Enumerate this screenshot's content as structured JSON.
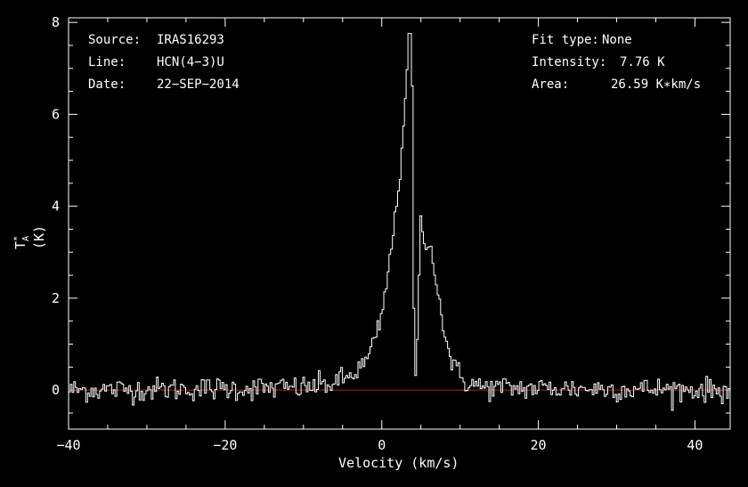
{
  "chart_data": {
    "type": "line",
    "title": "",
    "xlabel": "Velocity (km/s)",
    "ylabel_main": "T",
    "ylabel_sup": "*",
    "ylabel_sub": "A",
    "ylabel_unit": "(K)",
    "xlim": [
      -40,
      44.5
    ],
    "ylim": [
      -0.85,
      8.1
    ],
    "x_ticks": [
      -40,
      -20,
      0,
      20,
      40
    ],
    "x_tick_labels": [
      "−40",
      "−20",
      "0",
      "20",
      "40"
    ],
    "y_ticks": [
      0,
      2,
      4,
      6,
      8
    ],
    "y_tick_labels": [
      "0",
      "2",
      "4",
      "6",
      "8"
    ],
    "series": [
      {
        "color": "#ffffff",
        "profile": [
          [
            -40,
            0.0
          ],
          [
            -10,
            0.05
          ],
          [
            -6,
            0.15
          ],
          [
            -4,
            0.3
          ],
          [
            -2,
            0.6
          ],
          [
            -1,
            1.0
          ],
          [
            0,
            1.6
          ],
          [
            0.8,
            2.5
          ],
          [
            1.6,
            3.6
          ],
          [
            2.3,
            4.6
          ],
          [
            2.8,
            5.8
          ],
          [
            3.2,
            7.0
          ],
          [
            3.55,
            7.76
          ],
          [
            3.9,
            6.5
          ],
          [
            4.05,
            3.0
          ],
          [
            4.2,
            -0.1
          ],
          [
            4.5,
            0.8
          ],
          [
            5.0,
            3.75
          ],
          [
            5.4,
            3.3
          ],
          [
            5.8,
            3.0
          ],
          [
            6.3,
            3.1
          ],
          [
            6.8,
            2.6
          ],
          [
            7.5,
            1.8
          ],
          [
            8.3,
            1.0
          ],
          [
            9.2,
            0.5
          ],
          [
            10.5,
            0.2
          ],
          [
            13,
            0.05
          ],
          [
            44.5,
            0.0
          ]
        ],
        "noise_rms": 0.13,
        "step_kms": 0.22
      },
      {
        "color": "#b02020",
        "values_constant": 0
      }
    ]
  },
  "info_left": {
    "source_label": "Source:",
    "source_value": "IRAS16293",
    "line_label": "Line:",
    "line_value": "HCN(4−3)U",
    "date_label": "Date:",
    "date_value": "22−SEP−2014"
  },
  "info_right": {
    "fit_label": "Fit type:",
    "fit_value": "None",
    "intensity_label": "Intensity:",
    "intensity_value": "7.76 K",
    "area_label": "Area:",
    "area_value": "26.59 K∗km/s"
  }
}
